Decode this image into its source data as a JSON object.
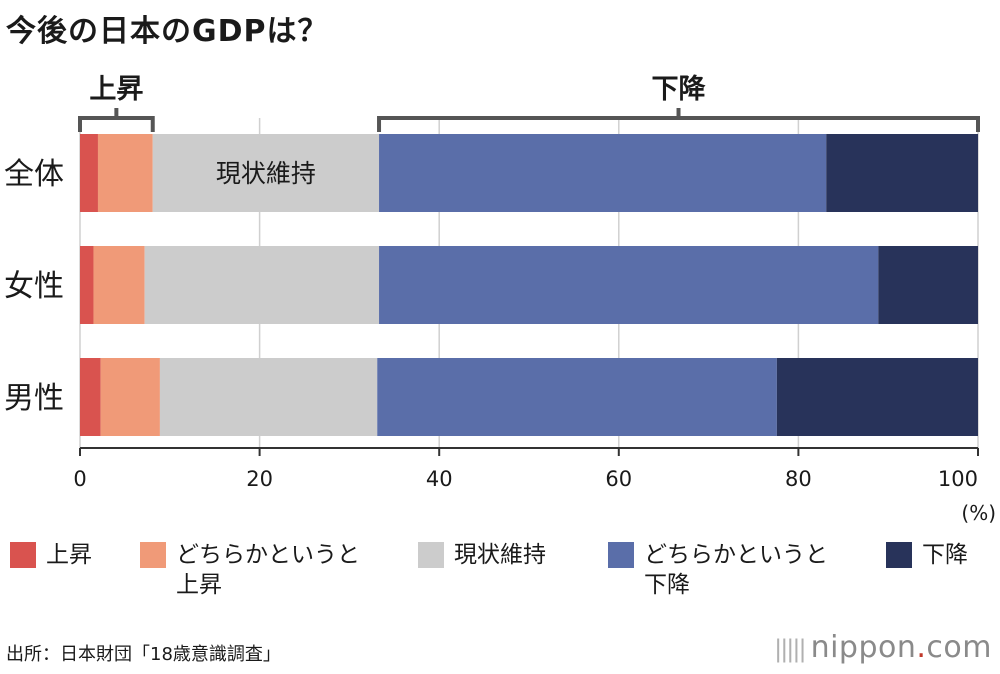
{
  "title": "今後の日本のGDPは？",
  "chart_data": {
    "type": "bar",
    "orientation": "horizontal",
    "stacked": true,
    "categories": [
      "全体",
      "女性",
      "男性"
    ],
    "series": [
      {
        "name": "上昇",
        "color": "#d9534f",
        "values": [
          2.0,
          1.5,
          2.3
        ]
      },
      {
        "name": "どちらかというと上昇",
        "color": "#f09a78",
        "values": [
          6.1,
          5.7,
          6.6
        ]
      },
      {
        "name": "現状維持",
        "color": "#cccccc",
        "values": [
          25.2,
          26.1,
          24.2
        ]
      },
      {
        "name": "どちらかというと下降",
        "color": "#5a6ea9",
        "values": [
          49.8,
          55.6,
          44.5
        ]
      },
      {
        "name": "下降",
        "color": "#28335a",
        "values": [
          16.9,
          11.1,
          22.4
        ]
      }
    ],
    "xlim": [
      0,
      100
    ],
    "xticks": [
      0,
      20,
      40,
      60,
      80,
      100
    ],
    "xunit": "(%)",
    "inline_label": {
      "text": "現状維持",
      "category": "全体",
      "series": "現状維持"
    },
    "brackets": [
      {
        "label": "上昇",
        "from": 0,
        "to": 8.1
      },
      {
        "label": "下降",
        "from": 33.3,
        "to": 100
      }
    ]
  },
  "legend": [
    {
      "label": "上昇",
      "color": "#d9534f"
    },
    {
      "label": "どちらかというと\n上昇",
      "color": "#f09a78"
    },
    {
      "label": "現状維持",
      "color": "#cccccc"
    },
    {
      "label": "どちらかというと\n下降",
      "color": "#5a6ea9"
    },
    {
      "label": "下降",
      "color": "#28335a"
    }
  ],
  "source": "出所：日本財団「18歳意識調査」",
  "brand": {
    "name": "nippon",
    "dot": ".",
    "tld": "com"
  }
}
